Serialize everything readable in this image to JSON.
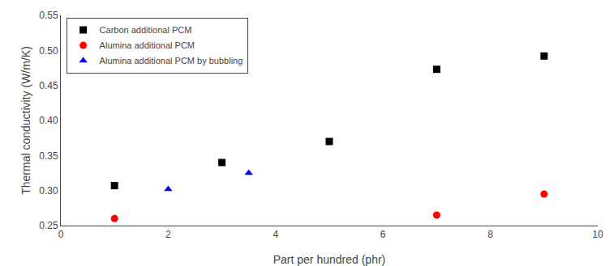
{
  "chart_data": {
    "type": "scatter",
    "xlabel": "Part per hundred (phr)",
    "ylabel": "Thermal conductivity (W/m/K)",
    "series": [
      {
        "name": "Carbon additional PCM",
        "color": "#000000",
        "marker": "square",
        "x": [
          1,
          3,
          5,
          7,
          9
        ],
        "values": [
          0.307,
          0.34,
          0.37,
          0.473,
          0.492
        ]
      },
      {
        "name": "Alumina additional PCM",
        "color": "#ff0000",
        "marker": "circle",
        "x": [
          1,
          7,
          9
        ],
        "values": [
          0.26,
          0.265,
          0.295
        ]
      },
      {
        "name": "Alumina additional PCM by bubbling",
        "color": "#0000ff",
        "marker": "triangle-up",
        "x": [
          2,
          3.5
        ],
        "values": [
          0.302,
          0.325
        ]
      }
    ],
    "xlim": [
      0,
      10
    ],
    "ylim": [
      0.25,
      0.55
    ],
    "xticks": [
      0,
      2,
      4,
      6,
      8,
      10
    ],
    "yticks": [
      0.25,
      {
        "value": 0.3,
        "label": "0.30"
      },
      0.35,
      {
        "value": 0.4,
        "label": "0.40"
      },
      0.45,
      {
        "value": 0.5,
        "label": "0.50"
      },
      0.55
    ],
    "grid": false,
    "legend": "upper left"
  }
}
